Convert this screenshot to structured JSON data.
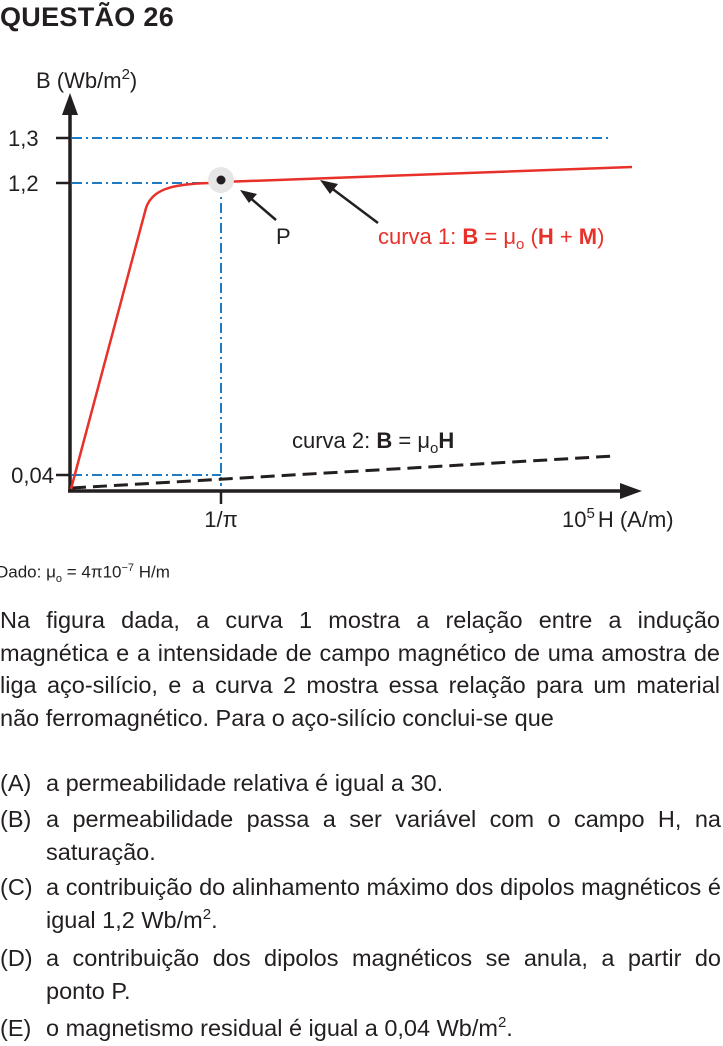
{
  "question_title": "QUESTÃO 26",
  "figure": {
    "y_axis_label": "B (Wb/m",
    "y_axis_label_exp": "2",
    "y_axis_label_close": ")",
    "y_ticks": [
      "1,3",
      "1,2",
      "0,04"
    ],
    "x_ticks": [
      "1/π"
    ],
    "x_end_label_prefix": "10",
    "x_end_label_exp": "5",
    "x_axis_label": "H (A/m)",
    "point_label": "P",
    "curve1_prefix": "curva 1: ",
    "curve1_bold_B": "B",
    "curve1_eq": " = μ",
    "curve1_sub": "o",
    "curve1_paren_open": " (",
    "curve1_bold_H": "H",
    "curve1_plus": " + ",
    "curve1_bold_M": "M",
    "curve1_paren_close": ")",
    "curve2_prefix": "curva 2: ",
    "curve2_bold_B": "B",
    "curve2_eq": " = μ",
    "curve2_sub": "o",
    "curve2_bold_H": "H",
    "colors": {
      "curve1": "#e8312a",
      "guide": "#1f7cc4",
      "axis": "#231f20"
    }
  },
  "given": {
    "prefix": "Dado: μ",
    "sub": "o",
    "value": " = 4π10",
    "exp": "−7",
    "unit": " H/m"
  },
  "paragraph": "Na figura dada, a curva 1  mostra a relação entre a indução magnética e a intensidade de campo magnético de uma amostra de liga aço-silício, e a curva 2 mostra essa relação para um material não ferromagnético. Para o aço-silício conclui-se que",
  "options": [
    {
      "letter": "(A)",
      "text": "a permeabilidade relativa é igual a 30."
    },
    {
      "letter": "(B)",
      "text": "a permeabilidade passa a ser variável com o campo H, na saturação."
    },
    {
      "letter": "(C)",
      "text": "a contribuição do alinhamento máximo dos dipolos magnéticos é igual 1,2 Wb/m",
      "exp": "2",
      "end": "."
    },
    {
      "letter": "(D)",
      "text": "a contribuição dos dipolos magnéticos se anula, a partir do ponto P."
    },
    {
      "letter": "(E)",
      "text": "o magnetismo residual é igual a 0,04 Wb/m",
      "exp": "2",
      "end": "."
    }
  ]
}
